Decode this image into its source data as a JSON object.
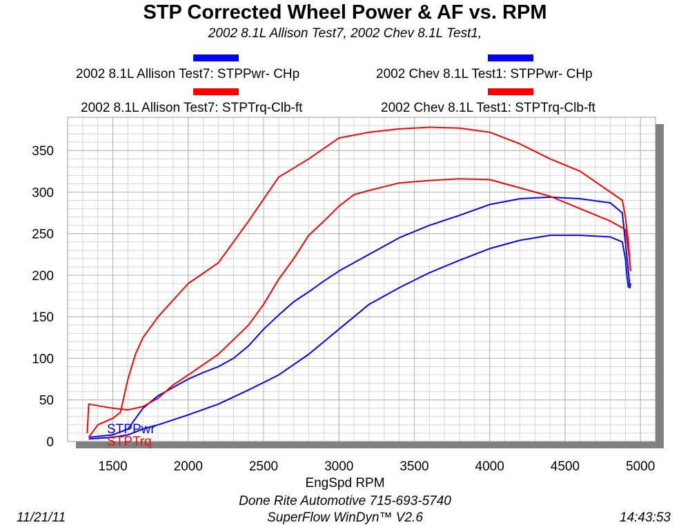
{
  "chart_data": {
    "type": "line",
    "title": "STP Corrected Wheel Power & AF vs. RPM",
    "subtitle": "2002 8.1L Allison Test7, 2002 Chev 8.1L Test1,",
    "xlabel": "EngSpd  RPM",
    "ylabel": "",
    "xlim": [
      1200,
      5100
    ],
    "ylim": [
      0,
      390
    ],
    "x_ticks": [
      1500,
      2000,
      2500,
      3000,
      3500,
      4000,
      4500,
      5000
    ],
    "y_ticks": [
      0,
      50,
      100,
      150,
      200,
      250,
      300,
      350
    ],
    "grid": true,
    "legend_position": "top",
    "legend": [
      {
        "label": "2002 8.1L Allison Test7: STPPwr- CHp",
        "color": "#0000ff"
      },
      {
        "label": "2002 Chev 8.1L Test1: STPPwr- CHp",
        "color": "#0000ff"
      },
      {
        "label": "2002 8.1L Allison Test7: STPTrq-Clb-ft",
        "color": "#ff0000"
      },
      {
        "label": "2002 Chev 8.1L Test1: STPTrq-Clb-ft",
        "color": "#ff0000"
      }
    ],
    "inline_labels": [
      {
        "text": "STPPwr",
        "color": "#0000ff"
      },
      {
        "text": "STPTrq",
        "color": "#ff0000"
      }
    ],
    "series": [
      {
        "color": "#0000ff",
        "x": [
          1340,
          1500,
          1600,
          1700,
          1800,
          1900,
          2000,
          2100,
          2200,
          2300,
          2400,
          2500,
          2600,
          2700,
          2800,
          2900,
          3000,
          3200,
          3400,
          3600,
          3800,
          4000,
          4200,
          4400,
          4600,
          4800,
          4880,
          4900,
          4920,
          4930,
          4935
        ],
        "y": [
          5,
          8,
          15,
          40,
          55,
          65,
          75,
          83,
          90,
          100,
          115,
          135,
          152,
          168,
          180,
          193,
          205,
          225,
          245,
          260,
          272,
          285,
          292,
          294,
          292,
          287,
          275,
          240,
          205,
          185,
          190
        ]
      },
      {
        "color": "#0000ff",
        "x": [
          1340,
          1500,
          1600,
          1700,
          1800,
          1900,
          2000,
          2200,
          2400,
          2600,
          2800,
          3000,
          3200,
          3400,
          3600,
          3800,
          4000,
          4200,
          4400,
          4600,
          4800,
          4880,
          4900,
          4910,
          4920
        ],
        "y": [
          3,
          5,
          8,
          15,
          20,
          26,
          32,
          45,
          62,
          80,
          105,
          135,
          165,
          185,
          203,
          218,
          232,
          242,
          248,
          248,
          246,
          240,
          220,
          200,
          185
        ]
      },
      {
        "color": "#ff0000",
        "x": [
          1340,
          1400,
          1500,
          1550,
          1600,
          1650,
          1700,
          1800,
          1900,
          2000,
          2200,
          2400,
          2600,
          2800,
          3000,
          3200,
          3400,
          3600,
          3800,
          4000,
          4200,
          4400,
          4600,
          4800,
          4880,
          4900,
          4920,
          4930,
          4935
        ],
        "y": [
          5,
          20,
          28,
          35,
          75,
          105,
          125,
          150,
          170,
          190,
          215,
          265,
          318,
          340,
          365,
          372,
          376,
          378,
          377,
          372,
          358,
          340,
          325,
          300,
          290,
          270,
          240,
          215,
          205
        ]
      },
      {
        "color": "#ff0000",
        "x": [
          1330,
          1340,
          1400,
          1500,
          1600,
          1700,
          1800,
          1900,
          2000,
          2200,
          2400,
          2500,
          2600,
          2700,
          2800,
          2900,
          3000,
          3100,
          3200,
          3400,
          3600,
          3800,
          4000,
          4200,
          4400,
          4600,
          4800,
          4900,
          4920,
          4935
        ],
        "y": [
          10,
          45,
          43,
          40,
          38,
          42,
          52,
          68,
          80,
          105,
          140,
          165,
          195,
          220,
          248,
          265,
          283,
          297,
          302,
          311,
          314,
          316,
          315,
          305,
          295,
          280,
          265,
          255,
          230,
          205
        ]
      }
    ]
  },
  "footer": {
    "company": "Done Rite Automotive 715-693-5740",
    "software": "SuperFlow WinDyn™ V2.6",
    "date": "11/21/11",
    "time": "14:43:53"
  }
}
